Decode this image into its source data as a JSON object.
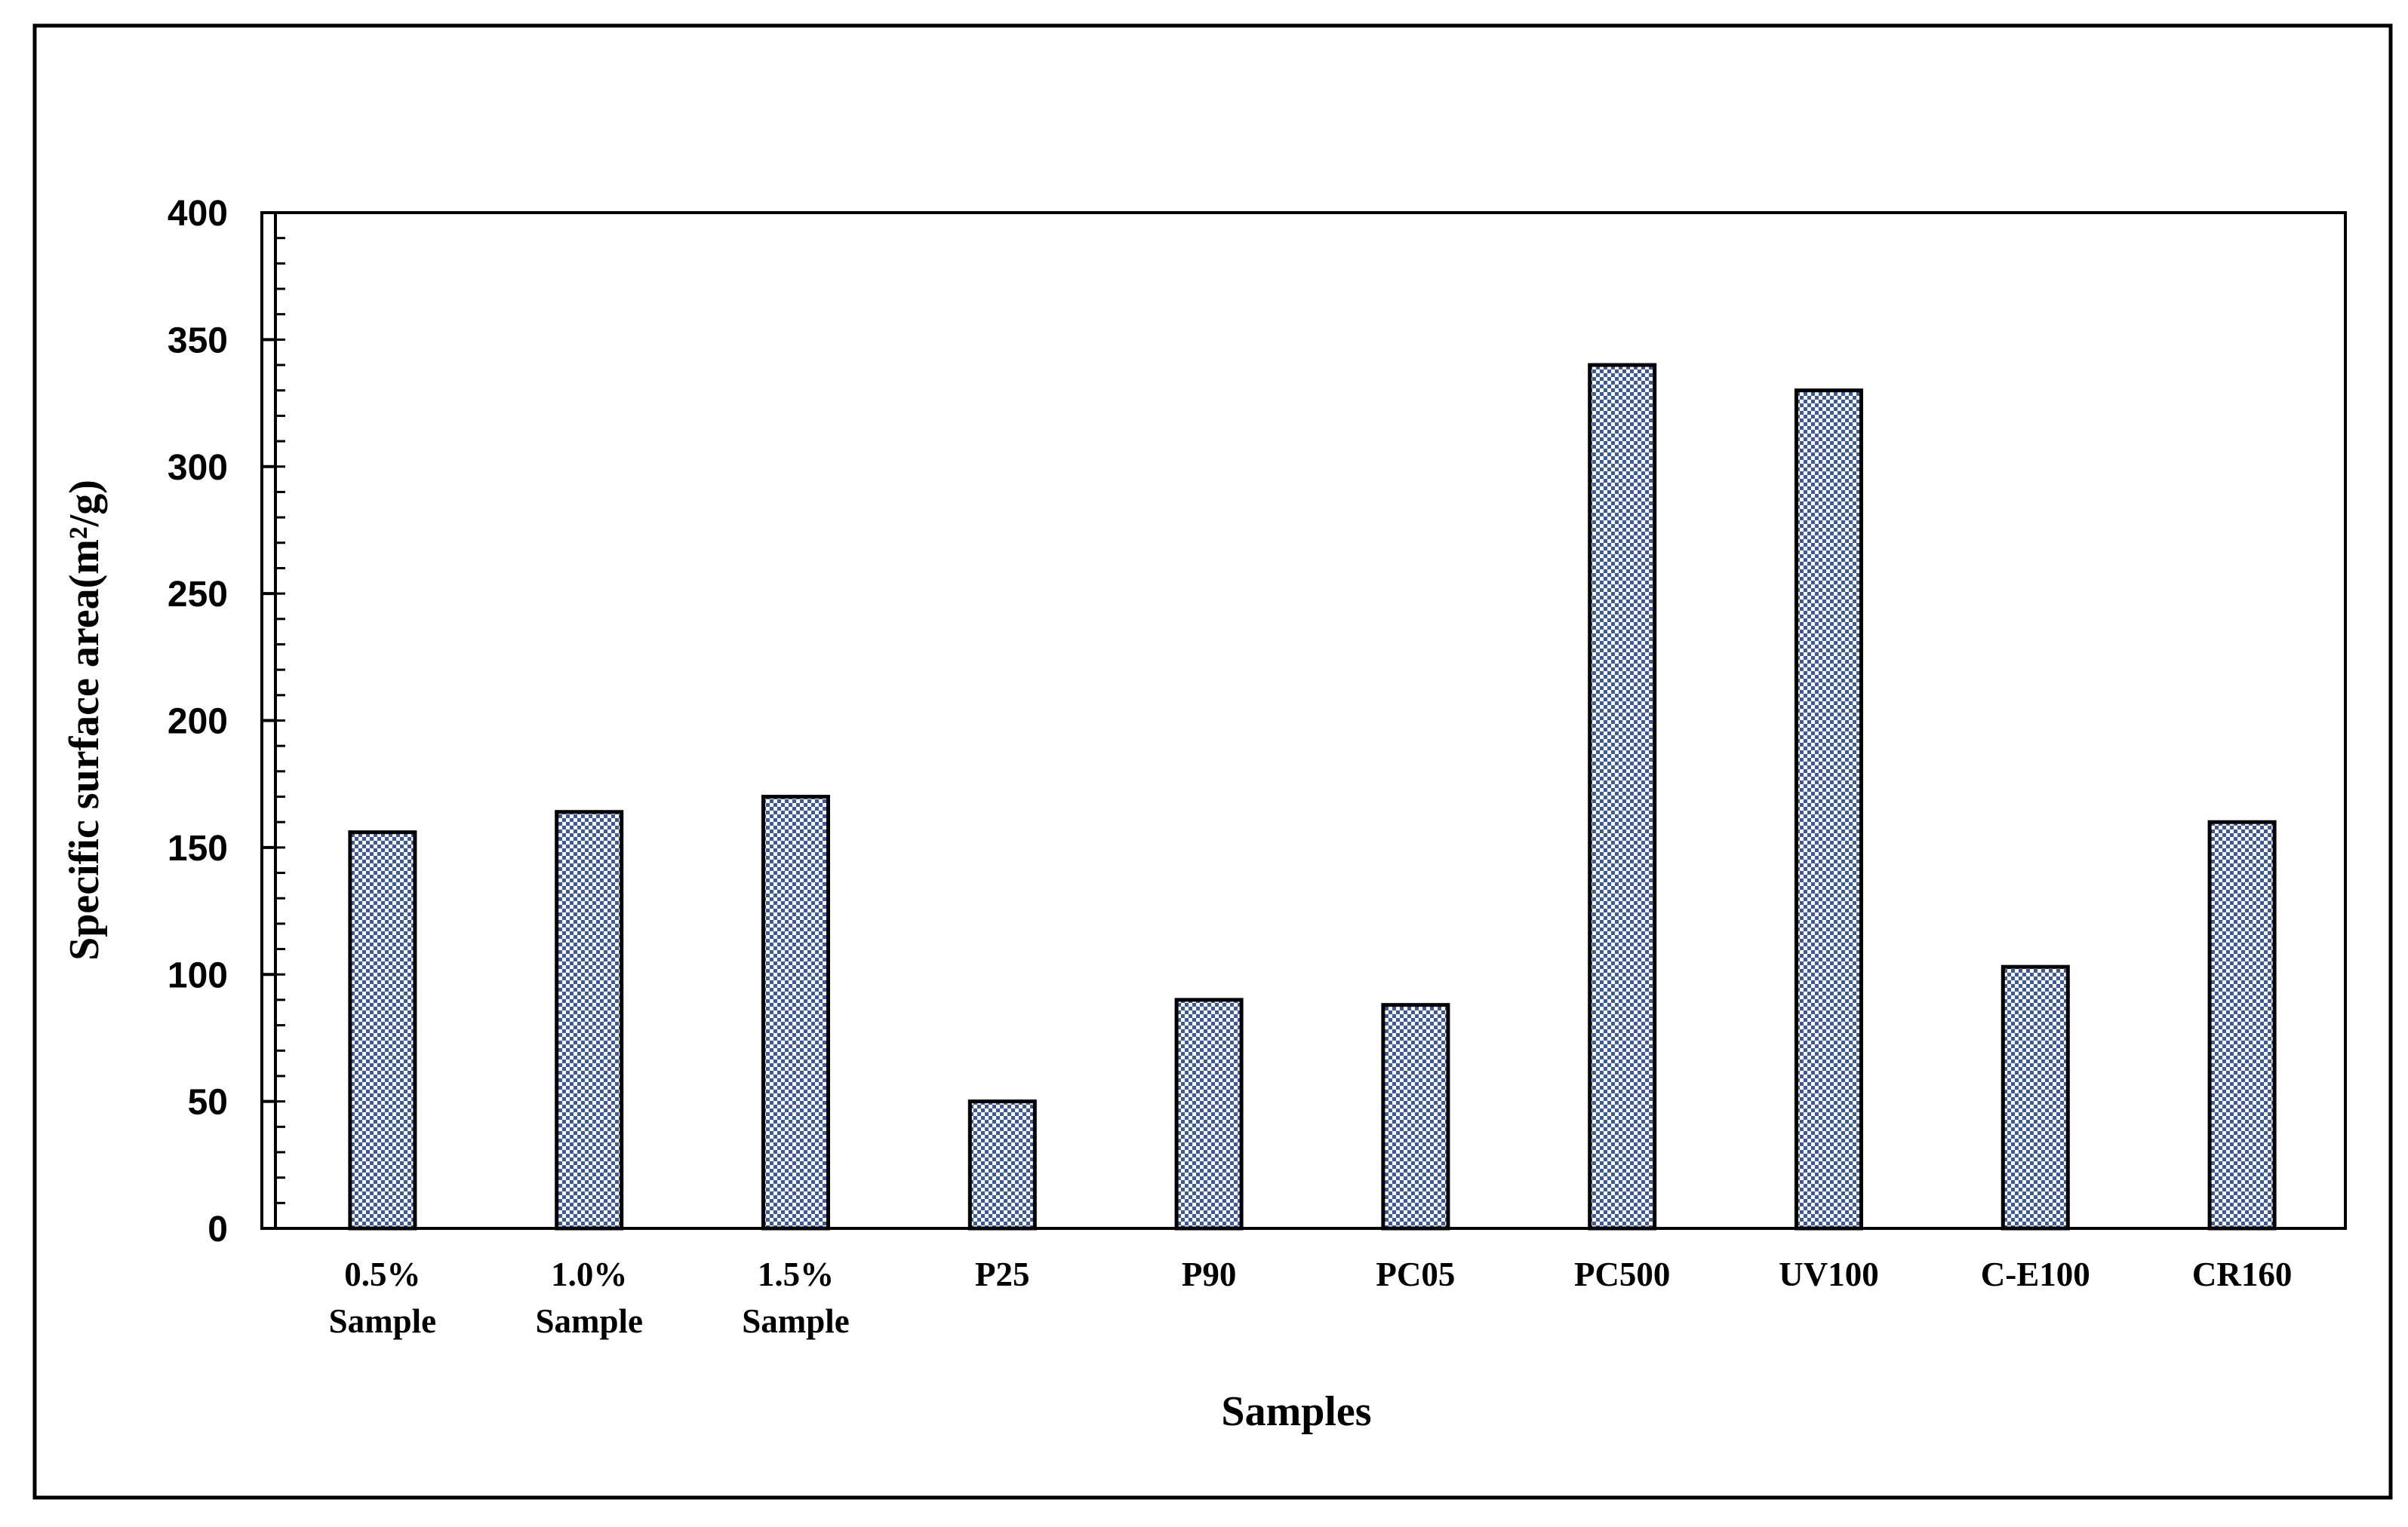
{
  "chart_data": {
    "type": "bar",
    "title": "",
    "xlabel": "Samples",
    "ylabel": "Specific surface area(m²/g)",
    "ylim": [
      0,
      400
    ],
    "y_major_ticks": [
      0,
      50,
      100,
      150,
      200,
      250,
      300,
      350,
      400
    ],
    "y_minor_step": 10,
    "categories": [
      [
        "0.5%",
        "Sample"
      ],
      [
        "1.0%",
        "Sample"
      ],
      [
        "1.5%",
        "Sample"
      ],
      [
        "P25"
      ],
      [
        "P90"
      ],
      [
        "PC05"
      ],
      [
        "PC500"
      ],
      [
        "UV100"
      ],
      [
        "C-E100"
      ],
      [
        "CR160"
      ]
    ],
    "values": [
      156,
      164,
      170,
      50,
      90,
      88,
      340,
      330,
      103,
      160
    ],
    "grid": false,
    "legend": "none",
    "colors": {
      "bar_pattern_light": "#ffffff",
      "bar_pattern_dark": "#3c5a99",
      "bar_outline": "#000000",
      "axis": "#000000",
      "frame": "#000000"
    }
  }
}
